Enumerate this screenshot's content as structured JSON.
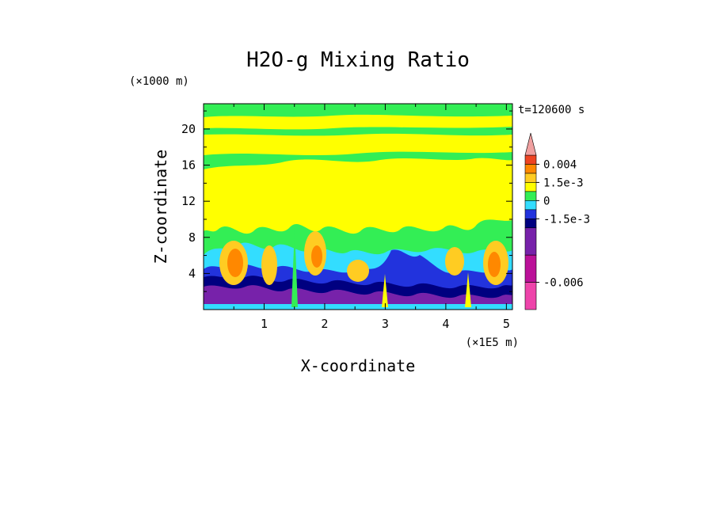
{
  "chart_data": {
    "type": "heatmap",
    "title": "H2O-g Mixing Ratio",
    "xlabel": "X-coordinate",
    "ylabel": "Z-coordinate",
    "x_unit": "(×1E5 m)",
    "y_unit": "(×1000 m)",
    "time_label": "t=120600 s",
    "xlim": [
      0,
      5.1
    ],
    "ylim": [
      0,
      22.8
    ],
    "x_ticks": [
      1,
      2,
      3,
      4,
      5
    ],
    "y_ticks": [
      4,
      8,
      12,
      16,
      20
    ],
    "colorbar": {
      "levels": [
        {
          "color": "#f0a0a0"
        },
        {
          "color": "#ee4422"
        },
        {
          "color": "#ff8800"
        },
        {
          "color": "#ffcc22"
        },
        {
          "color": "#ffff00"
        },
        {
          "color": "#33ee55"
        },
        {
          "color": "#33ddff"
        },
        {
          "color": "#2233dd"
        },
        {
          "color": "#000080"
        },
        {
          "color": "#7722aa"
        },
        {
          "color": "#bb1199"
        },
        {
          "color": "#ee44aa"
        }
      ],
      "labels": [
        {
          "text": "0.004",
          "index": 1
        },
        {
          "text": "1.5e-3",
          "index": 3
        },
        {
          "text": "0",
          "index": 5
        },
        {
          "text": "-1.5e-3",
          "index": 7
        },
        {
          "text": "-0.006",
          "index": 10
        }
      ]
    }
  }
}
